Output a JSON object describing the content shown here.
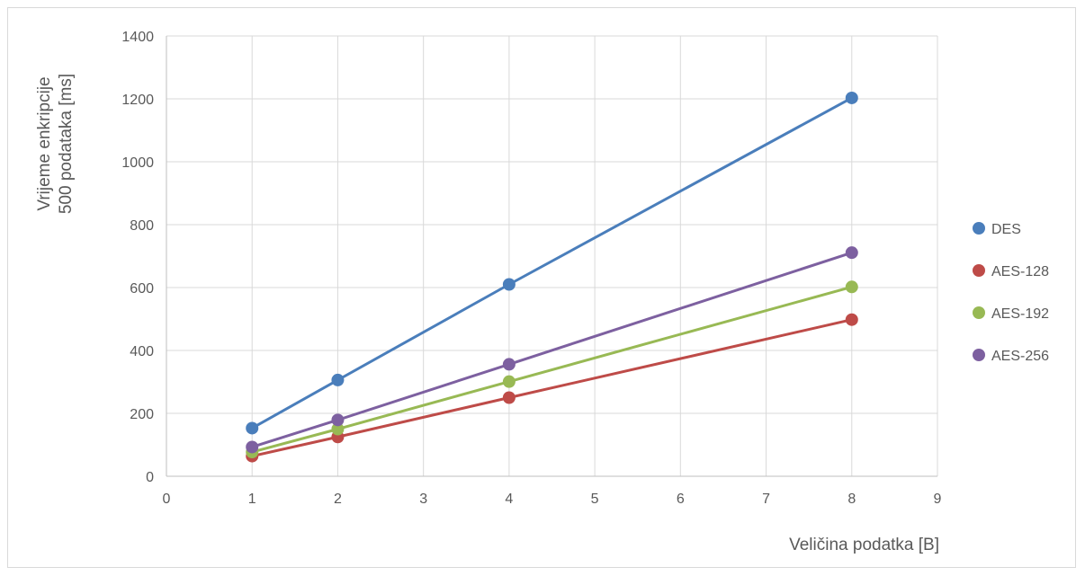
{
  "chart_data": {
    "type": "scatter",
    "title": "",
    "xlabel": "Veličina podatka [B]",
    "ylabel_lines": [
      "Vrijeme enkripcije",
      "500 podataka [ms]"
    ],
    "xlim": [
      0,
      9
    ],
    "ylim": [
      0,
      1400
    ],
    "xticks": [
      0,
      1,
      2,
      3,
      4,
      5,
      6,
      7,
      8,
      9
    ],
    "yticks": [
      0,
      200,
      400,
      600,
      800,
      1000,
      1200,
      1400
    ],
    "grid": true,
    "legend_position": "right",
    "x": [
      1,
      2,
      4,
      8
    ],
    "series": [
      {
        "name": "DES",
        "color": "#4a7ebb",
        "values": [
          153,
          306,
          610,
          1203
        ]
      },
      {
        "name": "AES-128",
        "color": "#be4b48",
        "values": [
          64,
          125,
          250,
          498
        ]
      },
      {
        "name": "AES-192",
        "color": "#98b954",
        "values": [
          77,
          150,
          301,
          602
        ]
      },
      {
        "name": "AES-256",
        "color": "#7d60a0",
        "values": [
          93,
          179,
          356,
          711
        ]
      }
    ]
  }
}
